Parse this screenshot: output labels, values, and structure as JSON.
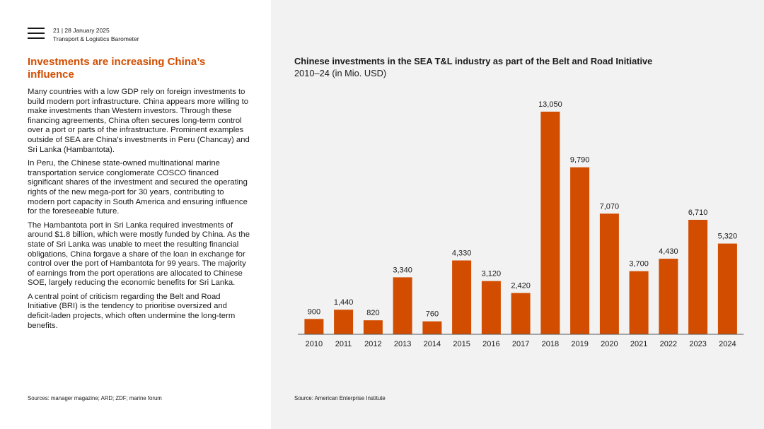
{
  "header": {
    "page_info": "21  |  28 January 2025",
    "report_name": "Transport & Logistics Barometer"
  },
  "article": {
    "title": "Investments are increasing China’s influence",
    "paragraphs": [
      "Many countries with a low GDP rely on foreign investments to build modern port infrastructure. China appears more willing to make investments than Western investors. Through these financing agreements, China often secures long-term control over a port or parts of the infrastructure. Prominent examples outside of SEA are China’s investments in Peru (Chancay) and Sri Lanka (Hambantota).",
      "In Peru, the Chinese state-owned multinational marine transportation service conglomerate COSCO financed significant shares of the investment and secured the operating rights of the new mega-port for 30 years, contributing to modern port capacity in South America and ensuring influence for the foreseeable future.",
      "The Hambantota port in Sri Lanka required investments of around $1.8 billion, which were mostly funded by China. As the state of Sri Lanka was unable to meet the resulting financial obligations, China forgave a share of the loan in exchange for control over the port of Hambantota for 99 years. The majority of earnings from the port operations are allocated to Chinese SOE, largely reducing the economic benefits for Sri Lanka.",
      "A central point of criticism regarding the Belt and Road Initiative (BRI) is the tendency to prioritise oversized and deficit-laden projects, which often undermine the long-term benefits."
    ],
    "sources": "Sources: manager magazine; ARD; ZDF; marine forum"
  },
  "chart_source": "Source: American Enterprise Institute",
  "colors": {
    "bar": "#d24d00",
    "title": "#d24d00",
    "panel": "#f2f2f2"
  },
  "chart_data": {
    "type": "bar",
    "title": "Chinese investments in the SEA T&L industry as part of the Belt and Road Initiative",
    "subtitle": "2010–24 (in Mio. USD)",
    "categories": [
      "2010",
      "2011",
      "2012",
      "2013",
      "2014",
      "2015",
      "2016",
      "2017",
      "2018",
      "2019",
      "2020",
      "2021",
      "2022",
      "2023",
      "2024"
    ],
    "values": [
      900,
      1440,
      820,
      3340,
      760,
      4330,
      3120,
      2420,
      13050,
      9790,
      7070,
      3700,
      4430,
      6710,
      5320
    ],
    "labels": [
      "900",
      "1,440",
      "820",
      "3,340",
      "760",
      "4,330",
      "3,120",
      "2,420",
      "13,050",
      "9,790",
      "7,070",
      "3,700",
      "4,430",
      "6,710",
      "5,320"
    ],
    "xlabel": "",
    "ylabel": "",
    "ylim": [
      0,
      13050
    ],
    "grid": false
  }
}
